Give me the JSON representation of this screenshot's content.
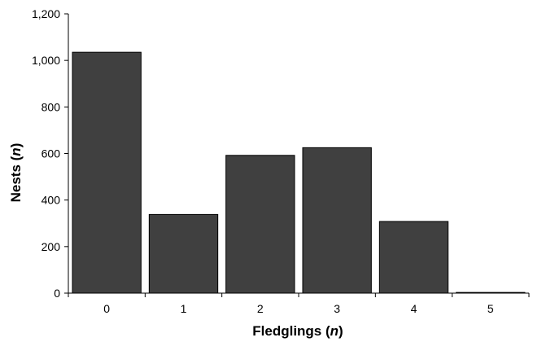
{
  "chart_data": {
    "type": "bar",
    "categories": [
      "0",
      "1",
      "2",
      "3",
      "4",
      "5"
    ],
    "values": [
      1035,
      338,
      592,
      625,
      308,
      3
    ],
    "title": "",
    "xlabel": "Fledglings",
    "xlabel_var": "n",
    "ylabel": "Nests",
    "ylabel_var": "n",
    "ylim": [
      0,
      1200
    ],
    "yticks": [
      0,
      200,
      400,
      600,
      800,
      1000,
      1200
    ],
    "ytick_labels": [
      "0",
      "200",
      "400",
      "600",
      "800",
      "1,000",
      "1,200"
    ],
    "grid": false,
    "legend": "none",
    "bar_color": "#404040",
    "bar_edge_color": "#000000"
  }
}
